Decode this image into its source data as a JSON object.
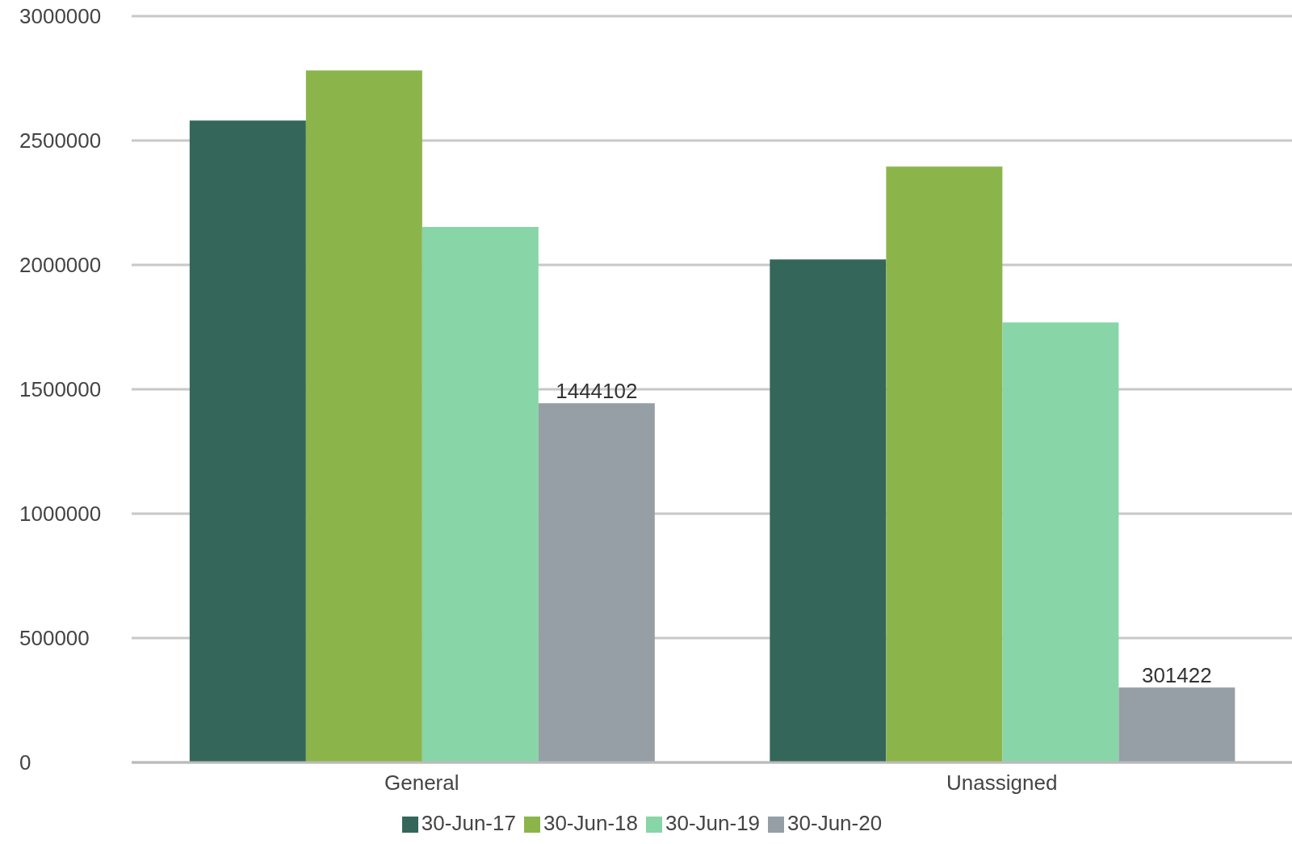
{
  "chart_data": {
    "type": "bar",
    "categories": [
      "General",
      "Unassigned"
    ],
    "series": [
      {
        "name": "30-Jun-17",
        "color": "#35665a",
        "values": [
          2580000,
          2022000
        ]
      },
      {
        "name": "30-Jun-18",
        "color": "#8bb54a",
        "values": [
          2782000,
          2395000
        ]
      },
      {
        "name": "30-Jun-19",
        "color": "#88d5a8",
        "values": [
          2153000,
          1769000
        ]
      },
      {
        "name": "30-Jun-20",
        "color": "#969fa6",
        "values": [
          1444102,
          301422
        ],
        "value_labels": [
          "1444102",
          "301422"
        ]
      }
    ],
    "ylim": [
      0,
      3000000
    ],
    "yticks": [
      0,
      500000,
      1000000,
      1500000,
      2000000,
      2500000,
      3000000
    ],
    "grid": "y",
    "legend": "bottom"
  }
}
